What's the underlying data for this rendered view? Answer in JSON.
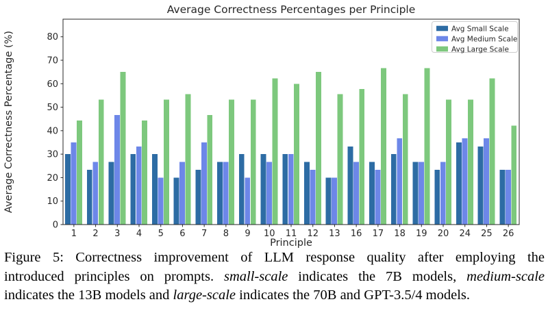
{
  "chart_data": {
    "type": "bar",
    "title": "Average Correctness Percentages per Principle",
    "xlabel": "Principle",
    "ylabel": "Average Correctness Percentage (%)",
    "ylim": [
      0,
      87.5
    ],
    "yticks": [
      0,
      10,
      20,
      30,
      40,
      50,
      60,
      70,
      80
    ],
    "grid": false,
    "legend_position": "upper right",
    "categories": [
      "1",
      "2",
      "3",
      "4",
      "5",
      "6",
      "7",
      "8",
      "9",
      "10",
      "11",
      "12",
      "13",
      "16",
      "17",
      "18",
      "19",
      "20",
      "24",
      "25",
      "26"
    ],
    "series": [
      {
        "name": "Avg Small Scale",
        "color": "#2d6ca4",
        "values": [
          30,
          23.3,
          26.7,
          30,
          30,
          20,
          23.3,
          26.7,
          30,
          30,
          30,
          26.7,
          20,
          33.3,
          26.7,
          30,
          26.7,
          23.3,
          35,
          33.3,
          23.3
        ]
      },
      {
        "name": "Avg Medium Scale",
        "color": "#6d87e8",
        "values": [
          35,
          26.7,
          46.7,
          33.3,
          20,
          26.7,
          35,
          26.7,
          20,
          26.7,
          30,
          23.3,
          20,
          26.7,
          23.3,
          36.7,
          26.7,
          26.7,
          36.7,
          36.7,
          23.3
        ]
      },
      {
        "name": "Avg Large Scale",
        "color": "#7dc87d",
        "values": [
          44.4,
          53.3,
          65,
          44.4,
          53.3,
          55.6,
          46.7,
          53.3,
          53.3,
          62.2,
          60,
          65,
          55.6,
          57.8,
          66.7,
          55.6,
          66.7,
          53.3,
          53.3,
          62.2,
          42.2
        ]
      }
    ]
  },
  "caption": {
    "lines": [
      [
        {
          "t": "Figure 5:  Correctness improvement of LLM response quality after employing the",
          "i": false
        }
      ],
      [
        {
          "t": "introduced principles on prompts. ",
          "i": false
        },
        {
          "t": "small-scale",
          "i": true
        },
        {
          "t": " indicates the 7B models, ",
          "i": false
        },
        {
          "t": "medium-scale",
          "i": true
        }
      ],
      [
        {
          "t": "indicates the 13B models and ",
          "i": false
        },
        {
          "t": "large-scale",
          "i": true
        },
        {
          "t": " indicates the 70B and GPT-3.5/4 models.",
          "i": false
        }
      ]
    ]
  }
}
